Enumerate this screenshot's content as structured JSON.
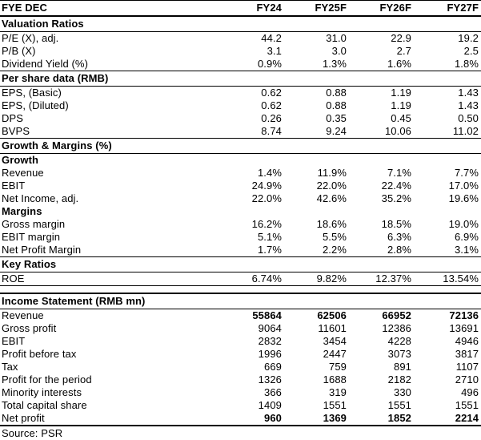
{
  "colors": {
    "text": "#000000",
    "background": "#ffffff",
    "rule": "#000000"
  },
  "header": {
    "label": "FYE DEC",
    "columns": [
      "FY24",
      "FY25F",
      "FY26F",
      "FY27F"
    ]
  },
  "upper_table": {
    "sections": [
      {
        "title": "Valuation Ratios",
        "rows": [
          {
            "label": "P/E (X), adj.",
            "values": [
              "44.2",
              "31.0",
              "22.9",
              "19.2"
            ]
          },
          {
            "label": "P/B (X)",
            "values": [
              "3.1",
              "3.0",
              "2.7",
              "2.5"
            ]
          },
          {
            "label": "Dividend Yield (%)",
            "values": [
              "0.9%",
              "1.3%",
              "1.6%",
              "1.8%"
            ]
          }
        ]
      },
      {
        "title": "Per share data (RMB)",
        "rows": [
          {
            "label": "EPS, (Basic)",
            "values": [
              "0.62",
              "0.88",
              "1.19",
              "1.43"
            ]
          },
          {
            "label": "EPS, (Diluted)",
            "values": [
              "0.62",
              "0.88",
              "1.19",
              "1.43"
            ]
          },
          {
            "label": "DPS",
            "values": [
              "0.26",
              "0.35",
              "0.45",
              "0.50"
            ]
          },
          {
            "label": "BVPS",
            "values": [
              "8.74",
              "9.24",
              "10.06",
              "11.02"
            ]
          }
        ]
      },
      {
        "title": "Growth & Margins (%)",
        "rows": [
          {
            "label": "Growth",
            "subheader": true
          },
          {
            "label": "Revenue",
            "values": [
              "1.4%",
              "11.9%",
              "7.1%",
              "7.7%"
            ]
          },
          {
            "label": "EBIT",
            "values": [
              "24.9%",
              "22.0%",
              "22.4%",
              "17.0%"
            ]
          },
          {
            "label": "Net Income, adj.",
            "values": [
              "22.0%",
              "42.6%",
              "35.2%",
              "19.6%"
            ]
          },
          {
            "label": "Margins",
            "subheader": true
          },
          {
            "label": "Gross margin",
            "values": [
              "16.2%",
              "18.6%",
              "18.5%",
              "19.0%"
            ]
          },
          {
            "label": "EBIT margin",
            "values": [
              "5.1%",
              "5.5%",
              "6.3%",
              "6.9%"
            ]
          },
          {
            "label": "Net Profit Margin",
            "values": [
              "1.7%",
              "2.2%",
              "2.8%",
              "3.1%"
            ]
          }
        ]
      },
      {
        "title": "Key Ratios",
        "rows": [
          {
            "label": "ROE",
            "values": [
              "6.74%",
              "9.82%",
              "12.37%",
              "13.54%"
            ]
          }
        ]
      }
    ]
  },
  "income_statement": {
    "title": "Income Statement (RMB mn)",
    "rows": [
      {
        "label": "Revenue",
        "values": [
          "55864",
          "62506",
          "66952",
          "72136"
        ],
        "bold_label": true,
        "bold_values": true
      },
      {
        "label": "Gross profit",
        "values": [
          "9064",
          "11601",
          "12386",
          "13691"
        ],
        "bold_label": true
      },
      {
        "label": "EBIT",
        "values": [
          "2832",
          "3454",
          "4228",
          "4946"
        ]
      },
      {
        "label": "Profit before tax",
        "values": [
          "1996",
          "2447",
          "3073",
          "3817"
        ]
      },
      {
        "label": "Tax",
        "values": [
          "669",
          "759",
          "891",
          "1107"
        ],
        "bold_label": true
      },
      {
        "label": "Profit for the period",
        "values": [
          "1326",
          "1688",
          "2182",
          "2710"
        ]
      },
      {
        "label": "Minority interests",
        "values": [
          "366",
          "319",
          "330",
          "496"
        ]
      },
      {
        "label": "Total capital share",
        "values": [
          "1409",
          "1551",
          "1551",
          "1551"
        ]
      },
      {
        "label": "Net profit",
        "values": [
          "960",
          "1369",
          "1852",
          "2214"
        ],
        "bold_label": true,
        "bold_values": true,
        "total": true
      }
    ]
  },
  "footer": {
    "source": "Source: PSR"
  }
}
